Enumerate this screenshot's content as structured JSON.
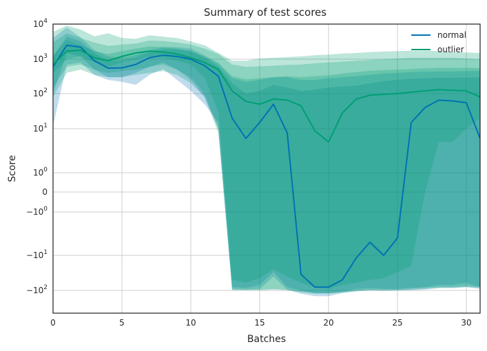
{
  "chart_data": {
    "type": "line",
    "title": "Summary of test scores",
    "xlabel": "Batches",
    "ylabel": "Score",
    "xlim": [
      0,
      31
    ],
    "yscale": "symlog",
    "x_ticks": [
      0,
      5,
      10,
      15,
      20,
      25,
      30
    ],
    "y_ticks": [
      {
        "value": 10000,
        "label": "10^4"
      },
      {
        "value": 1000,
        "label": "10^3"
      },
      {
        "value": 100,
        "label": "10^2"
      },
      {
        "value": 10,
        "label": "10^1"
      },
      {
        "value": 1,
        "label": "10^0"
      },
      {
        "value": 0,
        "label": "0"
      },
      {
        "value": -1,
        "label": "−10^0"
      },
      {
        "value": -10,
        "label": "−10^1"
      },
      {
        "value": -100,
        "label": "−10^2"
      }
    ],
    "grid": true,
    "legend_position": "top-right",
    "x": [
      0,
      1,
      2,
      3,
      4,
      5,
      6,
      7,
      8,
      9,
      10,
      11,
      12,
      13,
      14,
      15,
      16,
      17,
      18,
      19,
      20,
      21,
      22,
      23,
      24,
      25,
      26,
      27,
      28,
      29,
      30,
      31
    ],
    "series": [
      {
        "name": "normal",
        "color": "#0072b2",
        "values": [
          600,
          2500,
          2200,
          900,
          550,
          560,
          700,
          1100,
          1300,
          1200,
          1000,
          650,
          320,
          20,
          6,
          15,
          50,
          8,
          -35,
          -80,
          -80,
          -50,
          -12,
          -5,
          -10,
          -4,
          15,
          40,
          65,
          62,
          55,
          6
        ],
        "bands": [
          {
            "lower": [
              100,
              1500,
              1200,
              500,
              300,
              300,
              400,
              600,
              800,
              500,
              250,
              80,
              10,
              -80,
              -85,
              -70,
              -30,
              -80,
              -100,
              -130,
              -130,
              -110,
              -90,
              -85,
              -90,
              -90,
              -85,
              -80,
              -70,
              -70,
              -60,
              -80
            ],
            "upper": [
              1200,
              4500,
              3200,
              1500,
              900,
              900,
              1100,
              1600,
              1900,
              1900,
              1700,
              1100,
              600,
              200,
              100,
              120,
              180,
              150,
              120,
              130,
              150,
              160,
              170,
              200,
              230,
              250,
              270,
              280,
              290,
              290,
              290,
              300
            ]
          },
          {
            "lower": [
              12,
              700,
              800,
              350,
              250,
              220,
              180,
              350,
              520,
              250,
              120,
              50,
              15,
              -90,
              -95,
              -90,
              -40,
              -95,
              -140,
              -180,
              -180,
              -130,
              -110,
              -100,
              -105,
              -100,
              -100,
              -95,
              -85,
              -85,
              -80,
              -90
            ],
            "upper": [
              4000,
              8000,
              4200,
              1800,
              1200,
              1100,
              1300,
              1800,
              2200,
              2200,
              2000,
              1300,
              700,
              280,
              220,
              250,
              300,
              300,
              250,
              250,
              280,
              300,
              320,
              350,
              380,
              400,
              420,
              430,
              440,
              440,
              450,
              460
            ]
          }
        ]
      },
      {
        "name": "outlier",
        "color": "#009e73",
        "values": [
          700,
          1700,
          1800,
          1100,
          900,
          1200,
          1500,
          1700,
          1600,
          1400,
          1100,
          800,
          500,
          120,
          60,
          50,
          70,
          65,
          45,
          9,
          5,
          28,
          70,
          90,
          95,
          100,
          110,
          120,
          130,
          125,
          120,
          80
        ],
        "bands": [
          {
            "lower": [
              400,
              1000,
              1200,
              800,
              600,
              800,
              1000,
              1200,
              1100,
              900,
              700,
              300,
              30,
              -50,
              -60,
              -45,
              -25,
              -40,
              -60,
              -80,
              -90,
              -70,
              -60,
              -50,
              -45,
              -30,
              -20,
              0,
              5,
              5,
              10,
              20
            ],
            "upper": [
              1300,
              3500,
              2500,
              1700,
              1400,
              1700,
              2000,
              2300,
              2200,
              2000,
              1700,
              1200,
              800,
              320,
              260,
              280,
              300,
              320,
              300,
              320,
              340,
              380,
              420,
              460,
              480,
              500,
              520,
              540,
              560,
              560,
              560,
              550
            ]
          },
          {
            "lower": [
              150,
              600,
              700,
              500,
              400,
              450,
              500,
              600,
              700,
              500,
              300,
              100,
              10,
              -95,
              -95,
              -95,
              -90,
              -95,
              -110,
              -130,
              -130,
              -120,
              -100,
              -95,
              -95,
              -95,
              -90,
              -85,
              -80,
              -80,
              -75,
              -80
            ],
            "upper": [
              3000,
              5500,
              4000,
              3000,
              2400,
              2600,
              2800,
              3400,
              3300,
              3000,
              2600,
              2000,
              1400,
              700,
              600,
              620,
              650,
              680,
              700,
              760,
              800,
              850,
              900,
              950,
              1000,
              1050,
              1100,
              1100,
              1100,
              1100,
              1050,
              1000
            ]
          },
          {
            "lower": [
              80,
              400,
              500,
              350,
              300,
              300,
              350,
              400,
              450,
              350,
              200,
              80,
              8,
              -100,
              -100,
              -100,
              -95,
              -100,
              -120,
              -140,
              -140,
              -125,
              -105,
              -100,
              -100,
              -100,
              -95,
              -90,
              -85,
              -85,
              -80,
              -85
            ],
            "upper": [
              6000,
              9000,
              7000,
              4500,
              5500,
              4000,
              3800,
              4800,
              4400,
              4000,
              3200,
              2500,
              1500,
              900,
              900,
              1050,
              1100,
              1150,
              1200,
              1300,
              1350,
              1450,
              1500,
              1600,
              1650,
              1700,
              1750,
              1750,
              1700,
              1600,
              1550,
              1500
            ]
          }
        ]
      }
    ]
  }
}
